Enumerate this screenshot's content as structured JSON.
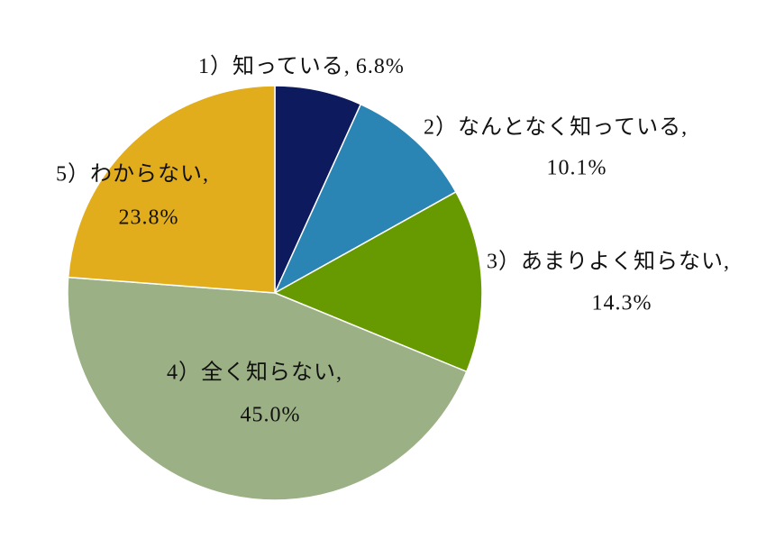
{
  "chart_data": {
    "type": "pie",
    "categories": [
      "1）知っている,",
      "2）なんとなく知っている,",
      "3）あまりよく知らない,",
      "4）全く知らない,",
      "5）わからない,"
    ],
    "values": [
      6.8,
      10.1,
      14.3,
      45.0,
      23.8
    ],
    "value_labels": [
      "6.8%",
      "10.1%",
      "14.3%",
      "45.0%",
      "23.8%"
    ],
    "colors": [
      "#0d1a5e",
      "#2a84b4",
      "#669a00",
      "#9bb085",
      "#e2ad1d"
    ]
  }
}
